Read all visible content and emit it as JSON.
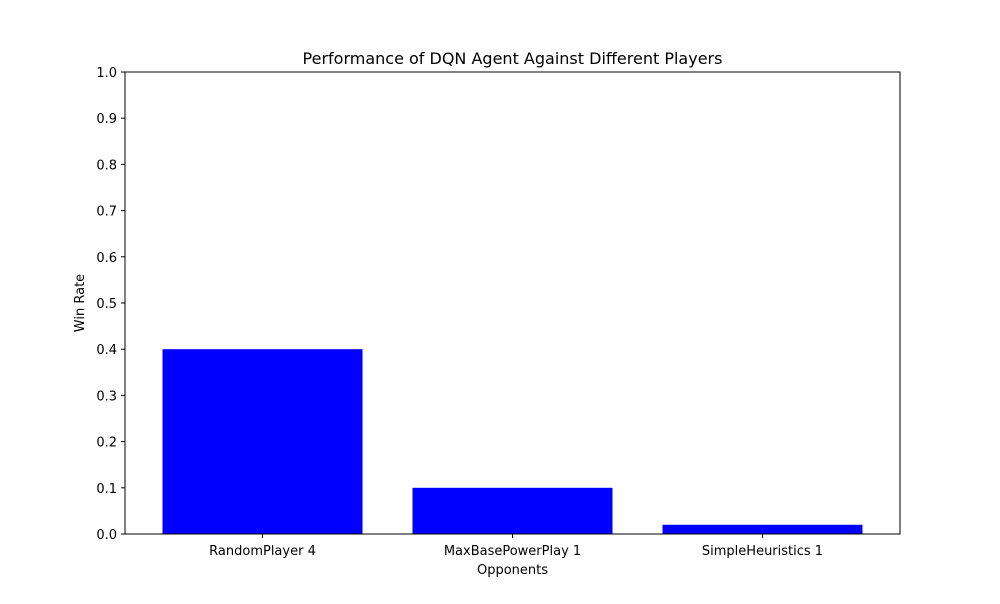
{
  "chart_data": {
    "type": "bar",
    "title": "Performance of DQN Agent Against Different Players",
    "xlabel": "Opponents",
    "ylabel": "Win Rate",
    "categories": [
      "RandomPlayer 4",
      "MaxBasePowerPlay 1",
      "SimpleHeuristics 1"
    ],
    "values": [
      0.4,
      0.1,
      0.02
    ],
    "ylim": [
      0,
      1.0
    ],
    "yticks": [
      "0.0",
      "0.1",
      "0.2",
      "0.3",
      "0.4",
      "0.5",
      "0.6",
      "0.7",
      "0.8",
      "0.9",
      "1.0"
    ],
    "bar_color": "#0000ff",
    "grid": false,
    "legend": "none"
  }
}
